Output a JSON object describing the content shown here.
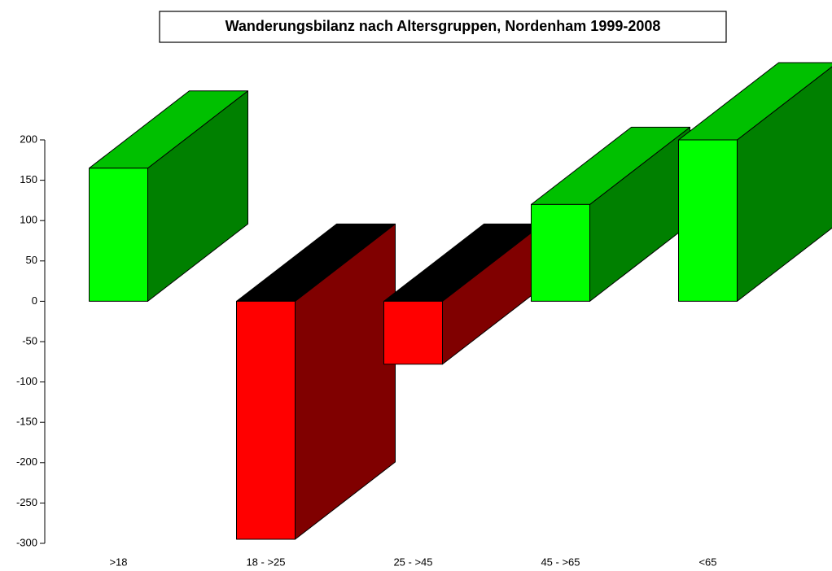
{
  "chart_data": {
    "type": "bar3d",
    "title": "Wanderungsbilanz nach Altersgruppen, Nordenham 1999-2008",
    "categories": [
      ">18",
      "18 - >25",
      "25 - >45",
      "45 - >65",
      "<65"
    ],
    "values": [
      165,
      -295,
      -78,
      120,
      200
    ],
    "positive_colors": {
      "front": "#00ff00",
      "top": "#00c000",
      "side": "#008000"
    },
    "negative_colors": {
      "front": "#ff0000",
      "top": "#000000",
      "side": "#800000"
    },
    "ylim": [
      -300,
      200
    ],
    "yticks": [
      -300,
      -250,
      -200,
      -150,
      -100,
      -50,
      0,
      50,
      100,
      150,
      200
    ]
  }
}
